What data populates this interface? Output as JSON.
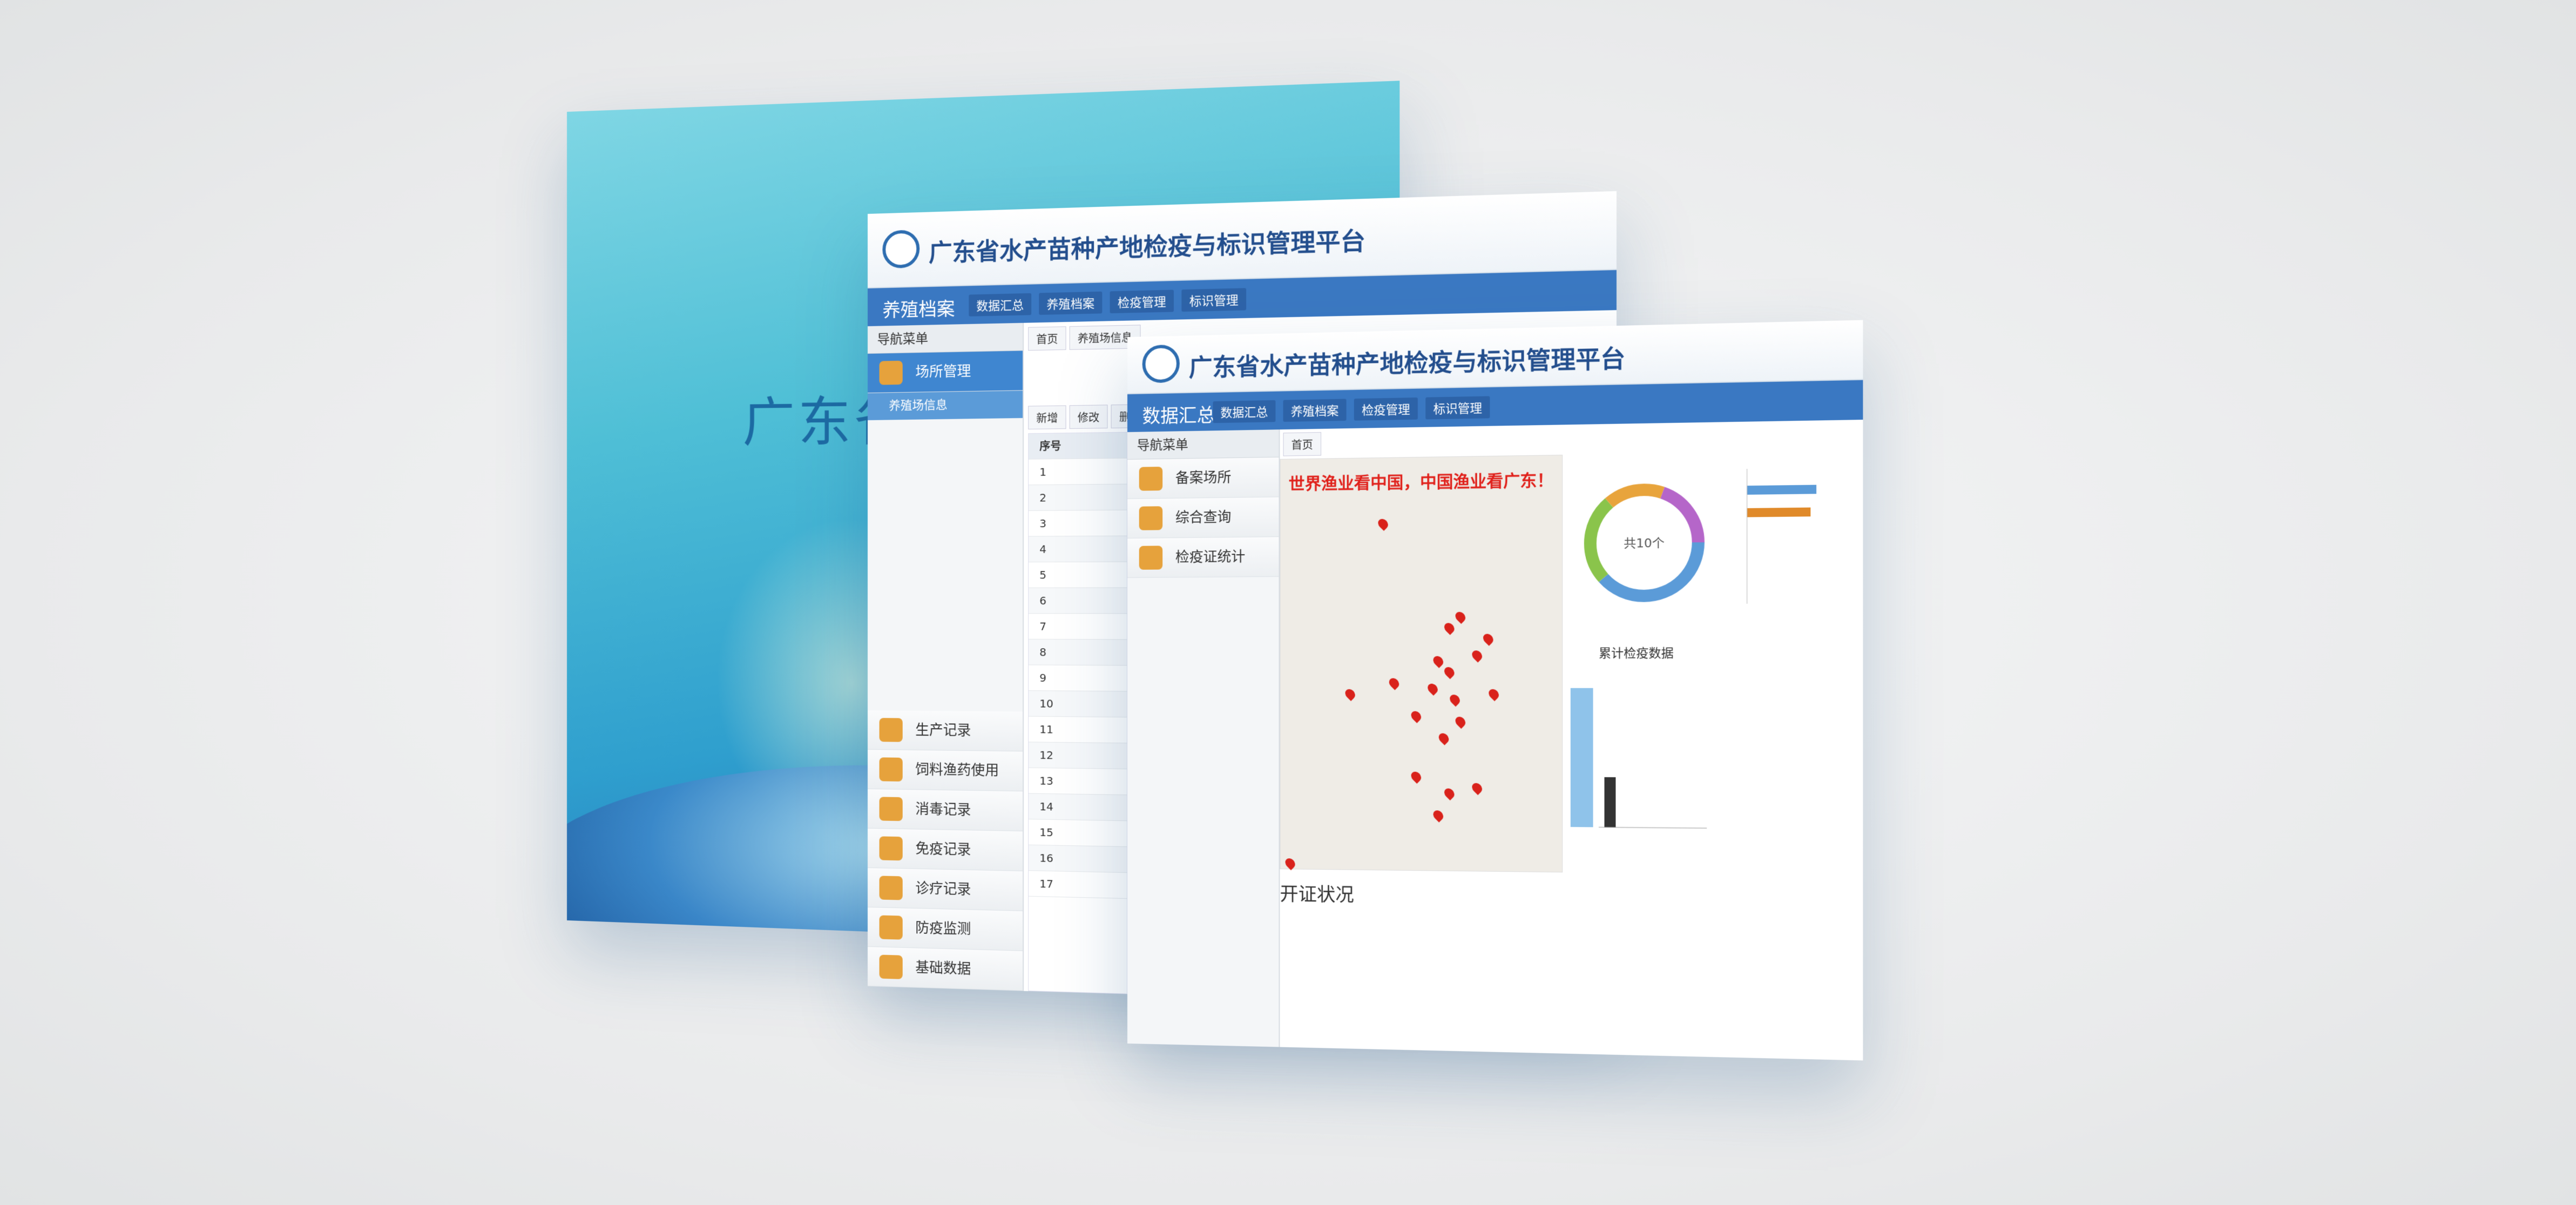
{
  "back_panel": {
    "title": "广东省水"
  },
  "middle_panel": {
    "header": {
      "title": "广东省水产苗种产地检疫与标识管理平台"
    },
    "nav": {
      "section": "养殖档案",
      "tabs": [
        "数据汇总",
        "养殖档案",
        "检疫管理",
        "标识管理"
      ]
    },
    "sidebar": {
      "heading": "导航菜单",
      "active": "场所管理",
      "sub_item": "养殖场信息",
      "items": [
        "生产记录",
        "饲料渔药使用",
        "消毒记录",
        "免疫记录",
        "诊疗记录",
        "防疫监测",
        "基础数据"
      ]
    },
    "breadcrumb": [
      "首页",
      "养殖场信息"
    ],
    "toolbar": [
      "新增",
      "修改",
      "删除"
    ],
    "table": {
      "header": "序号",
      "rows": [
        1,
        2,
        3,
        4,
        5,
        6,
        7,
        8,
        9,
        10,
        11,
        12,
        13,
        14,
        15,
        16,
        17
      ]
    }
  },
  "front_panel": {
    "header": {
      "title": "广东省水产苗种产地检疫与标识管理平台"
    },
    "nav": {
      "section": "数据汇总",
      "tabs": [
        "数据汇总",
        "养殖档案",
        "检疫管理",
        "标识管理"
      ]
    },
    "sidebar": {
      "heading": "导航菜单",
      "items": [
        "备案场所",
        "综合查询",
        "检疫证统计"
      ]
    },
    "breadcrumb": "首页",
    "slogan": "世界渔业看中国，中国渔业看广东！",
    "donut_label": "共10个",
    "bar_title": "累计检疫数据",
    "list_title": "开证状况"
  }
}
